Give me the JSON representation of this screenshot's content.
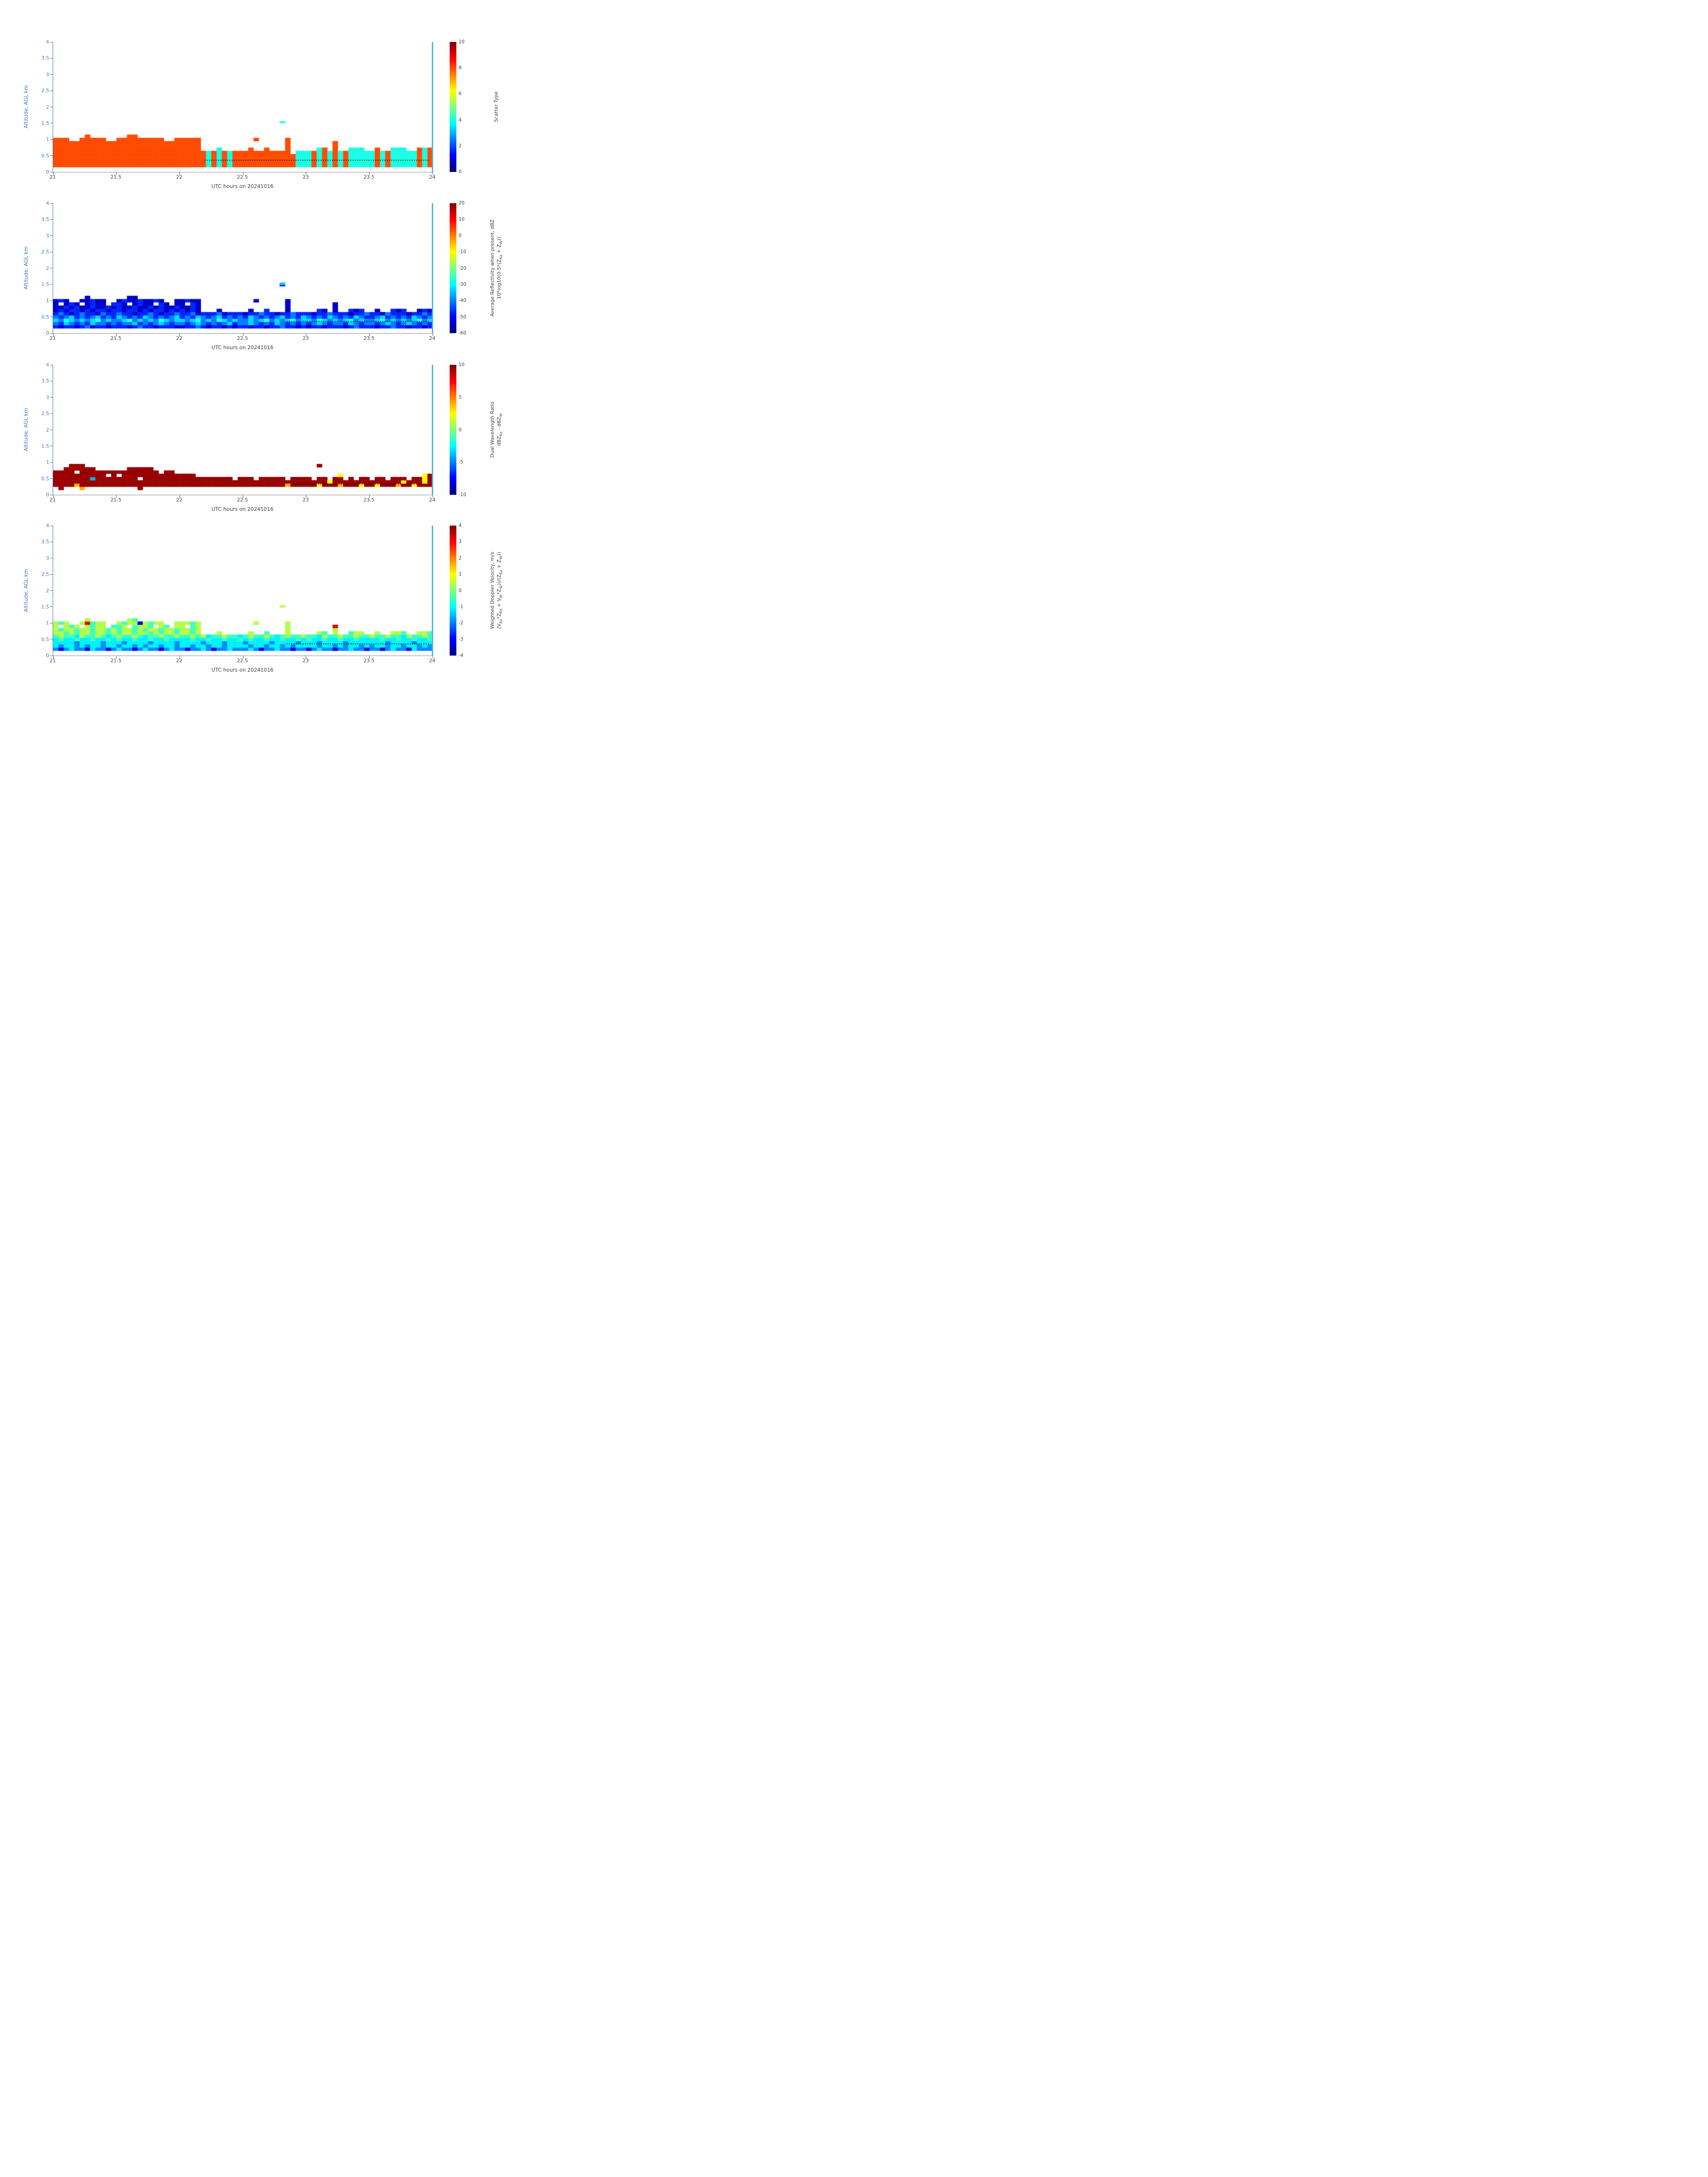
{
  "figure": {
    "x_tick_values": [
      21,
      21.5,
      22,
      22.5,
      23,
      23.5,
      24
    ],
    "x_tick_labels": [
      "21",
      "21.5",
      "22",
      "22.5",
      "23",
      "23.5",
      "24"
    ],
    "y_tick_values": [
      0,
      0.5,
      1,
      1.5,
      2,
      2.5,
      3,
      3.5,
      4
    ],
    "y_tick_labels": [
      "0",
      "0.5",
      "1",
      "1.5",
      "2",
      "2.5",
      "3",
      "3.5",
      "4"
    ],
    "colors": {
      "y_axis": "#3d77b8",
      "x_axis_text": "#3f3f3f",
      "right_spine": "#4fb0e4",
      "dotted_line": "#000000"
    }
  },
  "chart_data": [
    {
      "name": "Scatter Type",
      "type": "heatmap",
      "xlabel": "UTC hours on 20241016",
      "ylabel": "Altitude, AGL km",
      "xlim": [
        21,
        24
      ],
      "ylim": [
        0,
        4
      ],
      "colormap": "jet",
      "colorbar": {
        "label_lines": [
          "Scatter Type"
        ],
        "tick_values": [
          0,
          2,
          4,
          6,
          8,
          10
        ],
        "tick_labels": [
          "0",
          "2",
          "4",
          "6",
          "8",
          "10"
        ],
        "range": [
          0,
          10
        ]
      },
      "palette": {
        "r": 8,
        "c": 4
      },
      "grid": {
        "x0": 21,
        "dx": 0.0416667,
        "y0": 0.15,
        "dy": 0.1,
        "rows": [
          [
            "rrrrrrrrrrrr",
            "rrrrrrrrrrrr",
            "rrrrrcrcrcrr",
            "rrrrrrrrrrcc",
            "crcrcrcrcccc",
            "crcrcccccrcr"
          ],
          [
            "rrrrrrrrrrrr",
            "rrrrrrrrrrrr",
            "rrrrrcrcrcrr",
            "rrrrrrrrrrcc",
            "crcrcrcrcccc",
            "crcrcccccrcr"
          ],
          [
            "rrrrrrrrrrrr",
            "rrrrrrrrrrrr",
            "rrrrrcrcrcrr",
            "rrrrrrrrrrcc",
            "crcrcrcrcccc",
            "crcrcccccrcr"
          ],
          [
            "rrrrrrrrrrrr",
            "rrrrrrrrrrrr",
            "rrrrrcrcrcrr",
            "rrrrrrrrrrcc",
            "crcrcrcrcccc",
            "crcrcccccrcr"
          ],
          [
            "rrrrrrrrrrrr",
            "rrrrrrrrrrrr",
            "rrrrrcrcrcrr",
            "rrrrrrrrr.cc",
            "crcrcrcrcccc",
            "crcrcccccrcr"
          ],
          [
            "rrrrrrrrrrrr",
            "rrrrrrrrrrrr",
            "rrrr...c....",
            ".r..r...r...",
            "..cr.r..ccc.",
            ".r..ccc..rcr"
          ],
          [
            "rrrrrrrrrrrr",
            "rrrrrrrrrrrr",
            "rrrr........",
            "........r...",
            ".....r......",
            "............"
          ],
          [
            "rrrrrrrrrrrr",
            "rrrrrrrrrrrr",
            "rrrr........",
            "........r...",
            ".....r......",
            "............"
          ],
          [
            "rrr..rrrrr..",
            "rrrrrrrrr..r",
            "rrrr........",
            "..r.....r...",
            "............",
            "............"
          ],
          [
            "......r.....",
            "..rr........",
            "............",
            "............",
            "............",
            "............"
          ]
        ]
      },
      "extra_cells": [
        {
          "x": 22.79,
          "y": 1.5,
          "w": 0.045,
          "h": 0.06,
          "v": 4
        }
      ],
      "dotted_line": {
        "x_start": 22.2,
        "x_end": 23.97,
        "y": 0.36
      }
    },
    {
      "name": "Average Reflectivity",
      "type": "heatmap",
      "xlabel": "UTC hours on 20241016",
      "ylabel": "Altitude, AGL km",
      "xlim": [
        21,
        24
      ],
      "ylim": [
        0,
        4
      ],
      "colormap": "jet",
      "colorbar": {
        "label_lines": [
          "Average Reflectivity when present, dBZ",
          "10*log10(0.5*(Z_{Ka} + Z_{W}))"
        ],
        "tick_values": [
          -60,
          -50,
          -40,
          -30,
          -20,
          -10,
          0,
          10,
          20
        ],
        "tick_labels": [
          "-60",
          "-50",
          "-40",
          "-30",
          "-20",
          "-10",
          "0",
          "10",
          "20"
        ],
        "range": [
          -60,
          20
        ]
      },
      "palette": {
        "d": -54,
        "b": -47,
        "m": -40,
        "c": -33,
        "g": -27
      },
      "grid": {
        "x0": 21,
        "dx": 0.0416667,
        "y0": 0.15,
        "dy": 0.1,
        "rows": [
          [
            "bdbbdbmdbbdb",
            "bbdbmbbdbbbd",
            "dbbmbdbbdbdb",
            "bdbbdbbmbbdb",
            "dbbdbbbdbmbb",
            "bdbbmbbdbbdb"
          ],
          [
            "mbcmbmbcmmbm",
            "bmmcbmbmcmbm",
            "mbmcmbmbmcbm",
            "mcmbmbcmbmbm",
            "bmcmbmmbcmbm",
            "mbmcmbmcmbmb"
          ],
          [
            "cmgcmcmcgmcm",
            "mcgmcmcmgcmc",
            "cmcgmcmgcmcm",
            "mcmcgmcmcgmc",
            "cmgcmcmcgmcm",
            "mcgmcmcmcgmc"
          ],
          [
            "mbmcbmbmcbmb",
            "cmbmbcmbmbmc",
            "bmbcmbmcbmbm",
            "bcmbmbmcbmbc",
            "mbmbcmbmbcmb",
            "bmcbmbmbcmbm"
          ],
          [
            "bmbdbmbbdmbb",
            "mbbdbbmbdbbm",
            "bbmdbbbmdbbb",
            "dbbmbbdbbmbb",
            "bdbbmbbbdbbm",
            "bbdmbbbdbbmb"
          ],
          [
            "dbdbbdbdbbdb",
            "bdbbdbdbbdbd",
            "bdbd...d....",
            ".d..b...d...",
            "..bd.d..bdb.",
            ".d..bdb..dbd"
          ],
          [
            "ddbdbddbddbd",
            "bddbddbdbddb",
            "ddbd........",
            "........d...",
            ".....d......",
            "............"
          ],
          [
            "d.dbd.dbdd.b",
            "bd.dbdd.bd.d",
            "d.bd........",
            "........d...",
            ".....d......",
            "............"
          ],
          [
            "dbd..ddbdd..",
            "dbddbddbd..d",
            "dbdd........",
            "..d.....d...",
            "............",
            "............"
          ],
          [
            "......d.....",
            "..dd........",
            "............",
            "............",
            "............",
            "............"
          ]
        ]
      },
      "extra_cells": [
        {
          "x": 22.79,
          "y": 1.44,
          "w": 0.045,
          "h": 0.05,
          "v": -48
        },
        {
          "x": 22.79,
          "y": 1.5,
          "w": 0.045,
          "h": 0.06,
          "v": -34
        }
      ],
      "dotted_line": {
        "x_start": 22.85,
        "x_end": 23.97,
        "y": 0.36
      }
    },
    {
      "name": "Dual Wavelength Ratio",
      "type": "heatmap",
      "xlabel": "UTC hours on 20241016",
      "ylabel": "Altitude, AGL km",
      "xlim": [
        21,
        24
      ],
      "ylim": [
        0,
        4
      ],
      "colormap": "jet",
      "colorbar": {
        "label_lines": [
          "Dual Wavelength Ratio",
          "dBZ_{Ka} - dBZ_{W}"
        ],
        "tick_values": [
          -10,
          -5,
          0,
          5,
          10
        ],
        "tick_labels": [
          "-10",
          "-5",
          "0",
          "5",
          "10"
        ],
        "range": [
          -10,
          10
        ]
      },
      "palette": {
        "D": 9.5,
        "o": 4,
        "y": 2.5,
        "c": -4
      },
      "grid": {
        "x0": 21,
        "dx": 0.0416667,
        "y0": 0.15,
        "dy": 0.1,
        "rows": [
          [
            ".D...o......",
            "....D.......",
            "............",
            "............",
            "............",
            "............"
          ],
          [
            "DDDDoDDDDDDD",
            "DDDDDDDDDDDD",
            "DDDDDDDDDDDD",
            "DDDDDDDDoDDD",
            "DDyDDDoDDDyD",
            "DyDDDoDDyDDD"
          ],
          [
            "DDDDDDDDDDDD",
            "DDDDDDDDDDDD",
            "DDDDDDDDDDDD",
            "DDDDDDDDDDDD",
            "DDDDyDDDDDDD",
            "DDDDDDyDDDyD"
          ],
          [
            "DDDDDDDcDDDD",
            "DDDD.DDDDDDD",
            "DDDDDDDDDD.D",
            "DD.DDDDD.DDD",
            "D.DD.DD.D.DD",
            ".DD.DDD.DDyD"
          ],
          [
            "DDDDDDDDDD.D",
            ".DDDDDDDDDDD",
            "DDD.........",
            "............",
            "......y.....",
            "..........yD"
          ],
          [
            "DDDD.DDDDDDD",
            "DDDDDDDD.DD.",
            "............",
            "............",
            "............",
            "............"
          ],
          [
            "..DDDDDD....",
            "..DDDDD.....",
            "............",
            "............",
            "............",
            "............"
          ],
          [
            "...DDD......",
            "............",
            "............",
            "............",
            "..D.........",
            "............"
          ],
          [
            "............",
            "............",
            "............",
            "............",
            "............",
            "............"
          ],
          [
            "............",
            "............",
            "............",
            "............",
            "............",
            "............"
          ]
        ]
      },
      "extra_cells": [],
      "dotted_line": {
        "x_start": 22.9,
        "x_end": 23.9,
        "y": 0.33
      }
    },
    {
      "name": "Weighted Doppler Velocity",
      "type": "heatmap",
      "xlabel": "UTC hours on 20241016",
      "ylabel": "Altitude, AGL km",
      "xlim": [
        21,
        24
      ],
      "ylim": [
        0,
        4
      ],
      "colormap": "jet",
      "colorbar": {
        "label_lines": [
          "Weighted Doppler Velocity, m/s",
          "(V_{Ka}*Z_{Ka} + V_{W}*Z_{W}))/(Z_{Ka} + Z_{W}))"
        ],
        "tick_values": [
          -4,
          -3,
          -2,
          -1,
          0,
          1,
          2,
          3,
          4
        ],
        "tick_labels": [
          "-4",
          "-3",
          "-2",
          "-1",
          "0",
          "1",
          "2",
          "3",
          "4"
        ],
        "range": [
          -4,
          4
        ]
      },
      "palette": {
        "n": -3.2,
        "b": -1.9,
        "c": -1.1,
        "t": -0.5,
        "g": 0.4,
        "r": 3.2
      },
      "grid": {
        "x0": 21,
        "dx": 0.0416667,
        "y0": 0.15,
        "dy": 0.1,
        "rows": [
          [
            "bnbcbbncbbnb",
            "cbbnbcbbnbcb",
            "bnbbcbnbbcbb",
            "bcbnbbcbbnbb",
            "nbcbbnbbcbbn",
            "bbnbcbbncbbb"
          ],
          [
            "cbccbcbccbcc",
            "bccbcbccbccb",
            "ccbccbccbccc",
            "cbccbccbcbcc",
            "ccbccbcbccbc",
            "bccbccbccbcb"
          ],
          [
            "ccccbccccbcc",
            "cbccccbccccb",
            "ccccbcccbccc",
            "bccccbccccbc",
            "ccbccccbcccc",
            "cccbccccbccc"
          ],
          [
            "ctcctcctcctc",
            "tcctcctcctcc",
            "cctcctcctcct",
            "ctcctcctcctc",
            "tcctcctcctcc",
            "cctcctcctcct"
          ],
          [
            "tgttcgttgtct",
            "gttgtcttgttg",
            "ttgtgcttgttc",
            "tgttgtctgttg",
            "ttcgttgttgtt",
            "gttgttcgttgt"
          ],
          [
            "ggtgtggtggtg",
            "tggtggtgtggt",
            "ggtg...g....",
            ".g..t...g...",
            "..gt.g..tgg.",
            ".g..ggt..ggt"
          ],
          [
            "gtggtggtggtg",
            "tggtgtggtggt",
            "ggtg........",
            "........g...",
            ".....g......",
            "............"
          ],
          [
            "g.gtg.gtgg.t",
            "tg.tggt.gt.g",
            "g.tg........",
            "........g...",
            ".....r......",
            "............"
          ],
          [
            "gtg..grtgg..",
            "gtggngtgg..g",
            "ggtg........",
            "..g.....g...",
            "............",
            "............"
          ],
          [
            "......g.....",
            "..gt........",
            "............",
            "............",
            "............",
            "............"
          ]
        ]
      },
      "extra_cells": [
        {
          "x": 22.79,
          "y": 1.48,
          "w": 0.045,
          "h": 0.07,
          "v": 0.4
        }
      ],
      "dotted_line": {
        "x_start": 22.85,
        "x_end": 23.97,
        "y": 0.36
      }
    }
  ]
}
